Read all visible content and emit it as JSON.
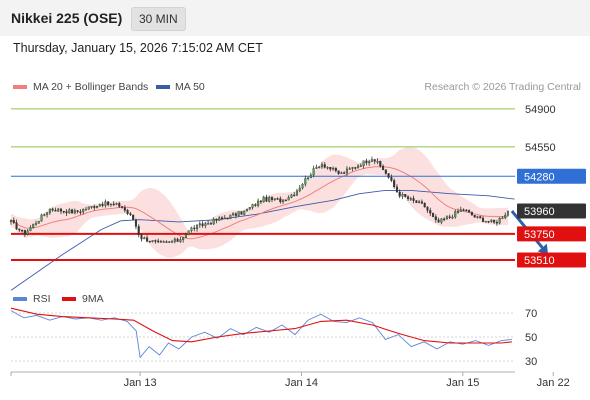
{
  "header": {
    "instrument": "Nikkei 225 (OSE)",
    "timeframe": "30 MIN",
    "datetime": "Thursday, January 15, 2026 7:15:02 AM CET"
  },
  "legend": {
    "ma20_label": "MA 20 + Bollinger Bands",
    "ma50_label": "MA 50",
    "credit": "Research © 2026 Trading Central"
  },
  "rsi_legend": {
    "rsi_label": "RSI",
    "ma9_label": "9MA"
  },
  "colors": {
    "ma20": "#f08080",
    "bollinger_fill": "#fbd5d5",
    "ma50": "#3b5aa8",
    "resistance": "#8bc34a",
    "pivot": "#2f6fd6",
    "support": "#e01010",
    "last_price": "#333333",
    "candle_up": "#4caf50",
    "candle_down": "#333333",
    "rsi": "#5b86d6",
    "rsi_ma": "#e01010",
    "arrow": "#2f5fa8"
  },
  "chart_data": [
    {
      "type": "candlestick",
      "title": "Nikkei 225 (OSE)",
      "price_range": [
        53160,
        55000
      ],
      "levels": [
        {
          "name": "resistance-2",
          "value": 54900,
          "label": "54900",
          "kind": "resistance"
        },
        {
          "name": "resistance-1",
          "value": 54550,
          "label": "54550",
          "kind": "resistance"
        },
        {
          "name": "pivot",
          "value": 54280,
          "label": "54280",
          "kind": "pivot"
        },
        {
          "name": "last-price",
          "value": 53960,
          "label": "53960",
          "kind": "last"
        },
        {
          "name": "support-1",
          "value": 53750,
          "label": "53750",
          "kind": "support"
        },
        {
          "name": "support-2",
          "value": 53510,
          "label": "53510",
          "kind": "support"
        }
      ],
      "x_ticks": [
        "Jan 13",
        "Jan 14",
        "Jan 15",
        "Jan 22"
      ],
      "x_tick_positions": [
        0.0,
        12.5,
        25.0,
        32.0
      ],
      "time_range": [
        -10.0,
        34.0
      ],
      "key_prices": [
        {
          "t": -10.0,
          "p": 53860
        },
        {
          "t": -9.0,
          "p": 53750
        },
        {
          "t": -7.0,
          "p": 53980
        },
        {
          "t": -5.0,
          "p": 53950
        },
        {
          "t": -3.0,
          "p": 54030
        },
        {
          "t": -1.5,
          "p": 54010
        },
        {
          "t": -0.5,
          "p": 53880
        },
        {
          "t": 0.0,
          "p": 53720
        },
        {
          "t": 1.5,
          "p": 53660
        },
        {
          "t": 3.0,
          "p": 53690
        },
        {
          "t": 4.0,
          "p": 53800
        },
        {
          "t": 6.0,
          "p": 53880
        },
        {
          "t": 8.0,
          "p": 53950
        },
        {
          "t": 9.5,
          "p": 54070
        },
        {
          "t": 11.0,
          "p": 54060
        },
        {
          "t": 12.0,
          "p": 54130
        },
        {
          "t": 13.0,
          "p": 54280
        },
        {
          "t": 14.0,
          "p": 54400
        },
        {
          "t": 15.5,
          "p": 54300
        },
        {
          "t": 17.0,
          "p": 54390
        },
        {
          "t": 18.0,
          "p": 54450
        },
        {
          "t": 19.0,
          "p": 54320
        },
        {
          "t": 20.0,
          "p": 54120
        },
        {
          "t": 21.0,
          "p": 54060
        },
        {
          "t": 22.0,
          "p": 54010
        },
        {
          "t": 23.0,
          "p": 53850
        },
        {
          "t": 24.0,
          "p": 53910
        },
        {
          "t": 25.0,
          "p": 53980
        },
        {
          "t": 26.0,
          "p": 53900
        },
        {
          "t": 27.5,
          "p": 53850
        },
        {
          "t": 28.5,
          "p": 53960
        }
      ],
      "ma50": [
        {
          "t": -10.0,
          "p": 53230
        },
        {
          "t": -6.0,
          "p": 53560
        },
        {
          "t": -3.0,
          "p": 53790
        },
        {
          "t": -1.5,
          "p": 53870
        },
        {
          "t": 0.0,
          "p": 53880
        },
        {
          "t": 3.0,
          "p": 53860
        },
        {
          "t": 6.0,
          "p": 53880
        },
        {
          "t": 9.0,
          "p": 53930
        },
        {
          "t": 12.0,
          "p": 54000
        },
        {
          "t": 15.0,
          "p": 54060
        },
        {
          "t": 17.0,
          "p": 54120
        },
        {
          "t": 19.0,
          "p": 54150
        },
        {
          "t": 21.0,
          "p": 54150
        },
        {
          "t": 24.0,
          "p": 54120
        },
        {
          "t": 27.0,
          "p": 54100
        },
        {
          "t": 29.0,
          "p": 54070
        }
      ],
      "forecast_arrow": {
        "from": {
          "t": 28.8,
          "p": 53960
        },
        "to": {
          "t": 31.6,
          "p": 53560
        }
      }
    },
    {
      "type": "line",
      "title": "RSI",
      "ylim": [
        20,
        80
      ],
      "y_ticks": [
        70,
        50,
        30
      ],
      "x_ticks": [
        "Jan 13",
        "Jan 14",
        "Jan 15",
        "Jan 22"
      ],
      "series": [
        {
          "name": "RSI",
          "points": [
            {
              "t": -10.0,
              "v": 72
            },
            {
              "t": -9.0,
              "v": 66
            },
            {
              "t": -8.0,
              "v": 68
            },
            {
              "t": -7.0,
              "v": 64
            },
            {
              "t": -6.0,
              "v": 67
            },
            {
              "t": -5.0,
              "v": 65
            },
            {
              "t": -4.0,
              "v": 66
            },
            {
              "t": -3.0,
              "v": 64
            },
            {
              "t": -2.0,
              "v": 66
            },
            {
              "t": -1.0,
              "v": 63
            },
            {
              "t": -0.3,
              "v": 55
            },
            {
              "t": 0.0,
              "v": 33
            },
            {
              "t": 0.7,
              "v": 42
            },
            {
              "t": 1.5,
              "v": 35
            },
            {
              "t": 2.2,
              "v": 45
            },
            {
              "t": 3.0,
              "v": 40
            },
            {
              "t": 4.0,
              "v": 50
            },
            {
              "t": 5.0,
              "v": 54
            },
            {
              "t": 6.0,
              "v": 49
            },
            {
              "t": 7.0,
              "v": 57
            },
            {
              "t": 8.0,
              "v": 52
            },
            {
              "t": 9.0,
              "v": 58
            },
            {
              "t": 10.0,
              "v": 54
            },
            {
              "t": 11.0,
              "v": 60
            },
            {
              "t": 12.0,
              "v": 52
            },
            {
              "t": 13.0,
              "v": 64
            },
            {
              "t": 14.0,
              "v": 69
            },
            {
              "t": 15.0,
              "v": 63
            },
            {
              "t": 16.0,
              "v": 62
            },
            {
              "t": 17.0,
              "v": 66
            },
            {
              "t": 18.0,
              "v": 62
            },
            {
              "t": 19.0,
              "v": 48
            },
            {
              "t": 20.0,
              "v": 52
            },
            {
              "t": 21.0,
              "v": 42
            },
            {
              "t": 22.0,
              "v": 46
            },
            {
              "t": 23.0,
              "v": 40
            },
            {
              "t": 24.0,
              "v": 46
            },
            {
              "t": 25.0,
              "v": 44
            },
            {
              "t": 26.0,
              "v": 47
            },
            {
              "t": 27.0,
              "v": 43
            },
            {
              "t": 28.0,
              "v": 47
            },
            {
              "t": 28.8,
              "v": 48
            }
          ]
        },
        {
          "name": "9MA",
          "points": [
            {
              "t": -10.0,
              "v": 74
            },
            {
              "t": -8.0,
              "v": 69
            },
            {
              "t": -6.0,
              "v": 67
            },
            {
              "t": -4.0,
              "v": 66
            },
            {
              "t": -2.0,
              "v": 65
            },
            {
              "t": -0.5,
              "v": 64
            },
            {
              "t": 1.0,
              "v": 55
            },
            {
              "t": 2.5,
              "v": 47
            },
            {
              "t": 4.0,
              "v": 46
            },
            {
              "t": 6.0,
              "v": 50
            },
            {
              "t": 8.0,
              "v": 53
            },
            {
              "t": 10.0,
              "v": 55
            },
            {
              "t": 12.0,
              "v": 57
            },
            {
              "t": 14.0,
              "v": 63
            },
            {
              "t": 16.0,
              "v": 64
            },
            {
              "t": 18.0,
              "v": 60
            },
            {
              "t": 20.0,
              "v": 53
            },
            {
              "t": 22.0,
              "v": 47
            },
            {
              "t": 24.0,
              "v": 45
            },
            {
              "t": 26.0,
              "v": 45
            },
            {
              "t": 28.0,
              "v": 45
            },
            {
              "t": 28.8,
              "v": 46
            }
          ]
        }
      ]
    }
  ]
}
